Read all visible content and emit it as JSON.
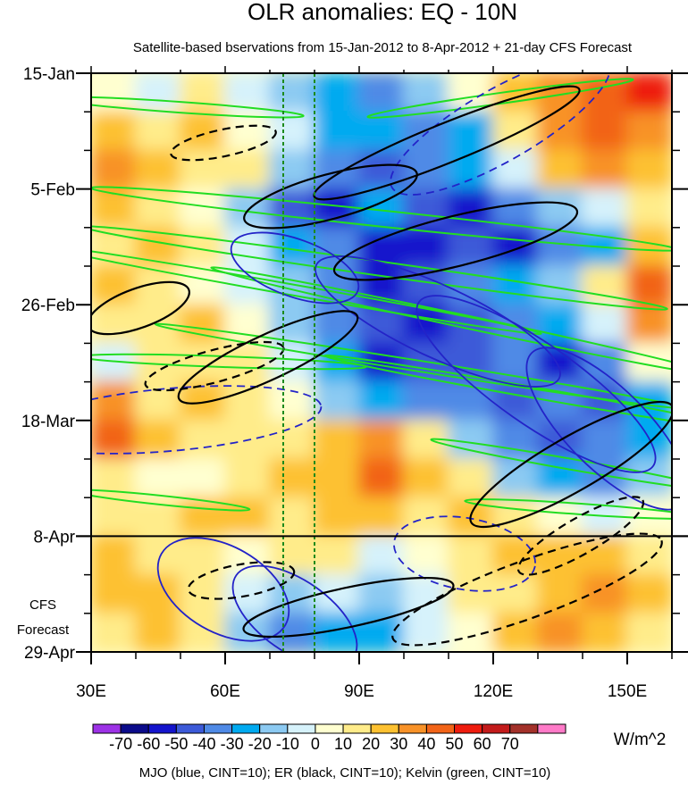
{
  "chart_data": {
    "type": "heatmap",
    "title": "OLR anomalies: EQ - 10N",
    "subtitle": "Satellite-based bservations from 15-Jan-2012 to 8-Apr-2012 + 21-day CFS Forecast",
    "x_axis": {
      "range": [
        30,
        160
      ],
      "ticks": [
        {
          "value": 30,
          "label": "30E"
        },
        {
          "value": 60,
          "label": "60E"
        },
        {
          "value": 90,
          "label": "90E"
        },
        {
          "value": 120,
          "label": "120E"
        },
        {
          "value": 150,
          "label": "150E"
        }
      ]
    },
    "y_axis": {
      "range": [
        "2012-01-15",
        "2012-04-29"
      ],
      "direction": "time increases downward",
      "ticks": [
        {
          "date": "2012-01-15",
          "label": "15-Jan"
        },
        {
          "date": "2012-02-05",
          "label": "5-Feb"
        },
        {
          "date": "2012-02-26",
          "label": "26-Feb"
        },
        {
          "date": "2012-03-18",
          "label": "18-Mar"
        },
        {
          "date": "2012-04-08",
          "label": "8-Apr"
        },
        {
          "date": "2012-04-29",
          "label": "29-Apr"
        }
      ]
    },
    "forecast_start": "2012-04-08",
    "forecast_label_lines": [
      "CFS",
      "Forecast"
    ],
    "reference_lines_x": [
      73,
      80
    ],
    "colorbar": {
      "unit": "W/m^2",
      "levels": [
        -70,
        -60,
        -50,
        -40,
        -30,
        -20,
        -10,
        0,
        10,
        20,
        30,
        40,
        50,
        60,
        70
      ],
      "colors": [
        "#9d32e6",
        "#0b0b8a",
        "#1414cc",
        "#3c5ad8",
        "#4f8ae6",
        "#00aaf0",
        "#8ccaf2",
        "#d6f2fb",
        "#ffffd0",
        "#ffec8a",
        "#fdc131",
        "#f89228",
        "#f26418",
        "#ee1c0e",
        "#c31b1b",
        "#a3312a",
        "#ff7ac8"
      ]
    },
    "legend_text": "MJO (blue, CINT=10); ER (black, CINT=10); Kelvin (green, CINT=10)",
    "series": [
      {
        "name": "MJO",
        "color": "#2323c8"
      },
      {
        "name": "ER",
        "color": "#000000"
      },
      {
        "name": "Kelvin",
        "color": "#22dd22"
      }
    ],
    "field": {
      "note": "coarse gridded OLR anomaly (W/m^2) in 10-degree lon x 7-day bins, rows from 15-Jan downward",
      "lon_bins": [
        35,
        45,
        55,
        65,
        75,
        85,
        95,
        105,
        115,
        125,
        135,
        145,
        155
      ],
      "rows": [
        [
          0,
          -10,
          10,
          -5,
          -20,
          -30,
          -40,
          -20,
          0,
          20,
          30,
          40,
          50
        ],
        [
          20,
          10,
          20,
          0,
          -10,
          -30,
          -30,
          -40,
          -30,
          10,
          30,
          40,
          30
        ],
        [
          30,
          20,
          10,
          10,
          -20,
          -40,
          -50,
          -40,
          -30,
          -10,
          20,
          30,
          20
        ],
        [
          20,
          10,
          0,
          -20,
          -50,
          -60,
          -30,
          -50,
          -60,
          -40,
          -20,
          -10,
          10
        ],
        [
          10,
          20,
          10,
          -10,
          -30,
          -40,
          -60,
          -60,
          -50,
          -60,
          -40,
          -30,
          20
        ],
        [
          20,
          10,
          0,
          -10,
          -20,
          -40,
          -60,
          -50,
          -40,
          -30,
          -20,
          10,
          40
        ],
        [
          10,
          10,
          20,
          0,
          -20,
          -40,
          -50,
          -60,
          -50,
          -40,
          -30,
          -10,
          30
        ],
        [
          -10,
          10,
          10,
          10,
          -10,
          -30,
          -60,
          -50,
          -50,
          -40,
          -60,
          -40,
          0
        ],
        [
          30,
          10,
          20,
          10,
          0,
          -20,
          -30,
          -40,
          -40,
          -50,
          -40,
          -50,
          -30
        ],
        [
          40,
          20,
          10,
          10,
          10,
          20,
          30,
          10,
          -20,
          -40,
          -50,
          -40,
          -30
        ],
        [
          10,
          0,
          0,
          10,
          20,
          20,
          40,
          20,
          10,
          -20,
          -30,
          -40,
          -20
        ],
        [
          10,
          10,
          20,
          20,
          10,
          20,
          20,
          10,
          20,
          10,
          0,
          -10,
          0
        ],
        [
          20,
          10,
          10,
          0,
          10,
          10,
          -10,
          0,
          10,
          20,
          20,
          20,
          10
        ],
        [
          20,
          20,
          10,
          -10,
          -20,
          -10,
          -20,
          -10,
          10,
          10,
          20,
          30,
          20
        ],
        [
          10,
          20,
          10,
          -20,
          -40,
          -30,
          -30,
          -10,
          0,
          20,
          30,
          20,
          10
        ]
      ]
    }
  }
}
